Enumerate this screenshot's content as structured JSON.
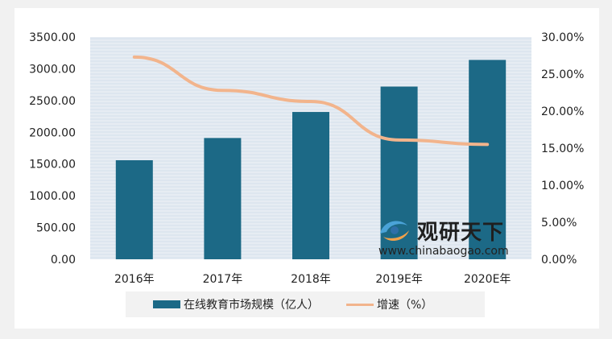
{
  "chart_data": {
    "type": "bar",
    "categories": [
      "2016年",
      "2017年",
      "2018年",
      "2019E年",
      "2020E年"
    ],
    "series": [
      {
        "name": "在线教育市场规模（亿人）",
        "type": "bar",
        "axis": "left",
        "color": "#1c6986",
        "values": [
          1560,
          1910,
          2320,
          2720,
          3140
        ]
      },
      {
        "name": "增速（%）",
        "type": "line",
        "axis": "right",
        "color": "#f2b48c",
        "values": [
          27.3,
          22.8,
          21.3,
          16.1,
          15.5
        ]
      }
    ],
    "left_axis": {
      "ylim": [
        0,
        3500
      ],
      "ticks": [
        "0.00",
        "500.00",
        "1000.00",
        "1500.00",
        "2000.00",
        "2500.00",
        "3000.00",
        "3500.00"
      ]
    },
    "right_axis": {
      "ylim": [
        0,
        30
      ],
      "ticks": [
        "0.00%",
        "5.00%",
        "10.00%",
        "15.00%",
        "20.00%",
        "25.00%",
        "30.00%"
      ]
    },
    "legend_position": "bottom",
    "grid": true
  },
  "legend": {
    "bar_label": "在线教育市场规模（亿人）",
    "line_label": "增速（%）"
  },
  "watermark": {
    "title": "观研天下",
    "url": "www.chinabaogao.com"
  }
}
